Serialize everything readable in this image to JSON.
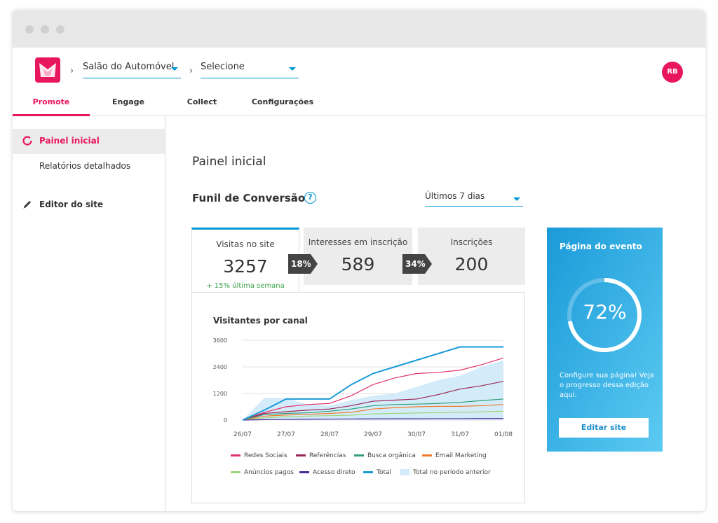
{
  "header": {
    "event_select": "Salão do Automóvel",
    "edition_select": "Selecione",
    "avatar_initials": "RB"
  },
  "tabs": [
    {
      "label": "Promote",
      "active": true
    },
    {
      "label": "Engage"
    },
    {
      "label": "Collect"
    },
    {
      "label": "Configurações"
    }
  ],
  "sidebar": {
    "items": [
      {
        "label": "Painel inicial",
        "icon": "ring-icon",
        "active": true
      },
      {
        "label": "Relatórios detalhados"
      },
      {
        "label": "Editor do site",
        "icon": "pencil-icon"
      }
    ]
  },
  "main": {
    "title": "Painel inicial",
    "funnel_title": "Funil de Conversão",
    "help_icon": "?",
    "range_select": "Últimos 7 dias",
    "funnel": [
      {
        "label": "Visitas no site",
        "value": "3257",
        "note": "+ 15% última semana"
      },
      {
        "label": "Interesses em inscrição",
        "value": "589"
      },
      {
        "label": "Inscrições",
        "value": "200"
      }
    ],
    "rates": [
      "18%",
      "34%"
    ]
  },
  "event_card": {
    "title": "Página do evento",
    "percent_label": "72%",
    "progress": 0.72,
    "description": "Configure sua página! Veja o progresso dessa edição aqui.",
    "button": "Editar site"
  },
  "colors": {
    "brand": "#e8175d",
    "accent": "#0097d6"
  },
  "chart_data": {
    "type": "line",
    "title": "Visitantes por canal",
    "categories": [
      "26/07",
      "27/07",
      "28/07",
      "29/07",
      "30/07",
      "31/07",
      "01/08"
    ],
    "yticks": [
      0,
      1200,
      2400,
      3600
    ],
    "ylim": [
      0,
      3600
    ],
    "x": [
      0,
      0.5,
      1,
      1.5,
      2,
      2.5,
      3,
      3.5,
      4,
      4.5,
      5,
      5.5,
      6
    ],
    "area": {
      "name": "Total no período anterior",
      "color": "#d4ecf9",
      "values": [
        0,
        1000,
        1000,
        700,
        650,
        900,
        1100,
        1200,
        1500,
        1800,
        2000,
        2400,
        2700
      ]
    },
    "series": [
      {
        "name": "Redes Sociais",
        "color": "#e0326e",
        "values": [
          0,
          350,
          600,
          700,
          750,
          1100,
          1600,
          1900,
          2100,
          2150,
          2250,
          2500,
          2800
        ]
      },
      {
        "name": "Referências",
        "color": "#9b2656",
        "values": [
          0,
          300,
          380,
          450,
          500,
          650,
          850,
          900,
          950,
          1150,
          1400,
          1550,
          1750
        ]
      },
      {
        "name": "Busca orgânica",
        "color": "#2f9e7a",
        "values": [
          0,
          250,
          300,
          330,
          400,
          500,
          650,
          700,
          720,
          750,
          800,
          880,
          950
        ]
      },
      {
        "name": "Email Marketing",
        "color": "#f07a2c",
        "values": [
          0,
          180,
          230,
          260,
          300,
          350,
          500,
          560,
          600,
          620,
          620,
          650,
          700
        ]
      },
      {
        "name": "Anúncios pagos",
        "color": "#9ed67a",
        "values": [
          0,
          100,
          150,
          180,
          200,
          220,
          280,
          300,
          320,
          340,
          350,
          370,
          400
        ]
      },
      {
        "name": "Acesso direto",
        "color": "#4b2a9c",
        "values": [
          0,
          20,
          30,
          40,
          45,
          50,
          55,
          60,
          60,
          65,
          65,
          70,
          70
        ]
      },
      {
        "name": "Total",
        "color": "#1a9ad8",
        "values": [
          0,
          450,
          950,
          950,
          950,
          1600,
          2100,
          2400,
          2700,
          3000,
          3300,
          3300,
          3300
        ]
      }
    ]
  }
}
